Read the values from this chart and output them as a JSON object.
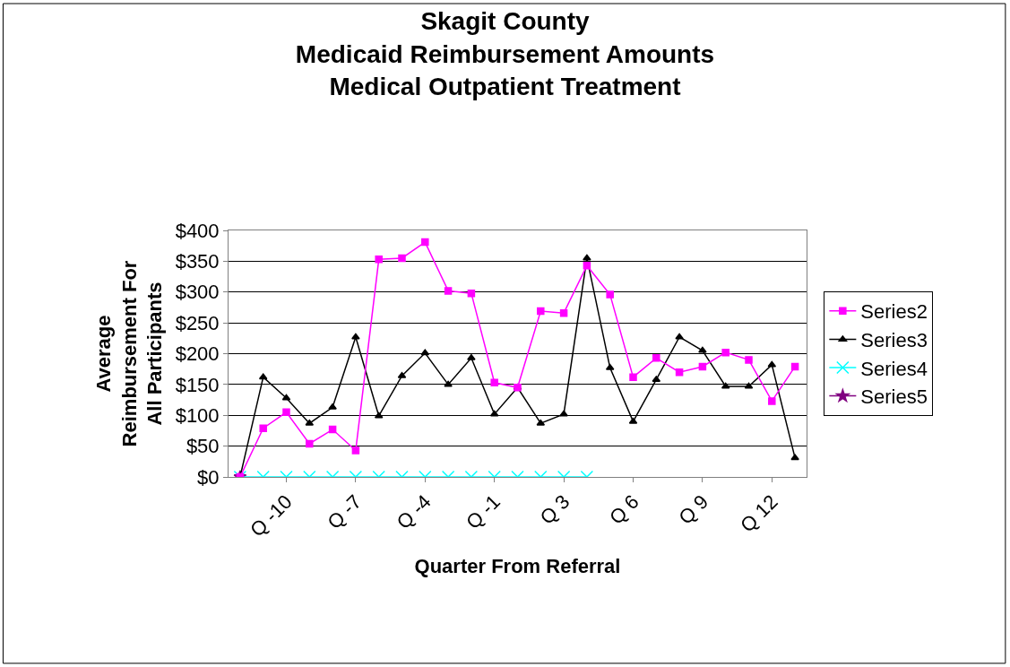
{
  "chart_data": {
    "type": "line",
    "title": "Skagit County\nMedicaid Reimbursement Amounts\nMedical Outpatient Treatment",
    "xlabel": "Quarter From Referral",
    "ylabel": "Average\nReimbursement For\nAll Participants",
    "categories": [
      null,
      null,
      "Q -10",
      null,
      null,
      "Q -7",
      null,
      null,
      "Q -4",
      null,
      null,
      "Q -1",
      null,
      null,
      "Q 3",
      null,
      null,
      "Q 6",
      null,
      null,
      "Q 9",
      null,
      null,
      "Q 12",
      null
    ],
    "series": [
      {
        "name": "Series2",
        "color": "#ff00ff",
        "marker": "square",
        "values": [
          0,
          79,
          105,
          54,
          77,
          43,
          353,
          355,
          381,
          302,
          298,
          153,
          145,
          269,
          266,
          343,
          296,
          162,
          193,
          170,
          179,
          202,
          190,
          123,
          179
        ]
      },
      {
        "name": "Series3",
        "color": "#000000",
        "marker": "triangle",
        "values": [
          0,
          162,
          128,
          87,
          113,
          227,
          99,
          164,
          201,
          150,
          193,
          102,
          145,
          87,
          102,
          355,
          177,
          90,
          158,
          227,
          205,
          147,
          147,
          182,
          31
        ]
      },
      {
        "name": "Series4",
        "color": "#00ffff",
        "marker": "cross",
        "values": [
          0,
          0,
          0,
          0,
          0,
          0,
          0,
          0,
          0,
          0,
          0,
          0,
          0,
          0,
          0,
          0,
          null,
          null,
          null,
          null,
          null,
          null,
          null,
          null,
          null
        ]
      },
      {
        "name": "Series5",
        "color": "#800080",
        "marker": "star",
        "values": [
          0,
          null,
          null,
          null,
          null,
          null,
          null,
          null,
          null,
          null,
          null,
          null,
          null,
          null,
          null,
          null,
          null,
          null,
          null,
          null,
          null,
          null,
          null,
          null,
          null
        ]
      }
    ],
    "ylim": [
      0,
      400
    ],
    "yticks": [
      {
        "value": 0,
        "label": "$0"
      },
      {
        "value": 50,
        "label": "$50"
      },
      {
        "value": 100,
        "label": "$100"
      },
      {
        "value": 150,
        "label": "$150"
      },
      {
        "value": 200,
        "label": "$200"
      },
      {
        "value": 250,
        "label": "$250"
      },
      {
        "value": 300,
        "label": "$300"
      },
      {
        "value": 350,
        "label": "$350"
      },
      {
        "value": 400,
        "label": "$400"
      }
    ],
    "grid": "y",
    "legend": "right",
    "line_style": "solid"
  }
}
